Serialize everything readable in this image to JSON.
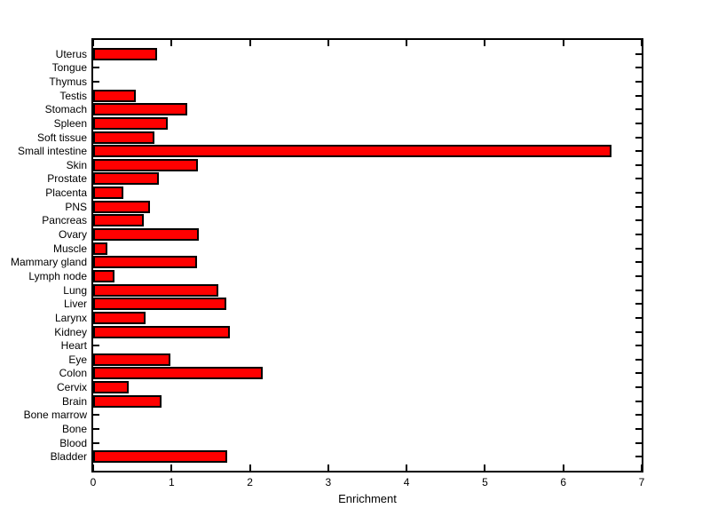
{
  "figure": {
    "background_color": "#ffffff"
  },
  "chart_data": {
    "type": "bar",
    "orientation": "horizontal",
    "title": "",
    "xlabel": "Enrichment",
    "ylabel": "",
    "xlim": [
      0,
      7
    ],
    "xticks": [
      "0",
      "1",
      "2",
      "3",
      "4",
      "5",
      "6",
      "7"
    ],
    "grid": false,
    "legend": "none",
    "bar_color": "#ff0000",
    "bar_edge_color": "#000000",
    "axis_color": "#000000",
    "categories_top_to_bottom": [
      "Uterus",
      "Tongue",
      "Thymus",
      "Testis",
      "Stomach",
      "Spleen",
      "Soft tissue",
      "Small intestine",
      "Skin",
      "Prostate",
      "Placenta",
      "PNS",
      "Pancreas",
      "Ovary",
      "Muscle",
      "Mammary gland",
      "Lymph node",
      "Lung",
      "Liver",
      "Larynx",
      "Kidney",
      "Heart",
      "Eye",
      "Colon",
      "Cervix",
      "Brain",
      "Bone marrow",
      "Bone",
      "Blood",
      "Bladder"
    ],
    "values": [
      0.81,
      0,
      0,
      0.54,
      1.2,
      0.95,
      0.78,
      6.61,
      1.34,
      0.84,
      0.38,
      0.73,
      0.65,
      1.35,
      0.18,
      1.33,
      0.27,
      1.6,
      1.7,
      0.67,
      1.74,
      0,
      0.99,
      2.16,
      0.45,
      0.87,
      0,
      0,
      0,
      1.71
    ]
  }
}
